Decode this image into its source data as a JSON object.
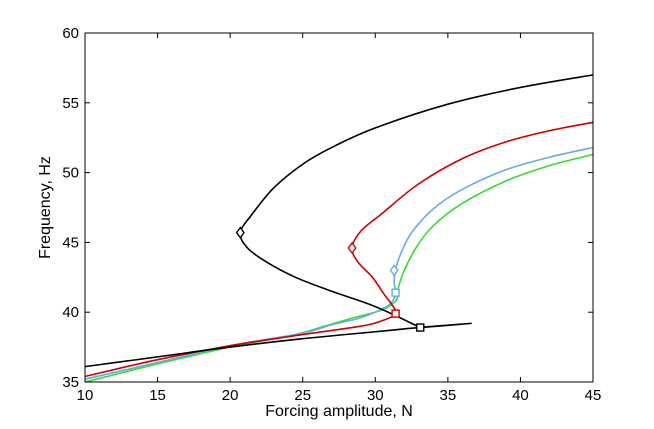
{
  "chart_data": {
    "type": "line",
    "title": "",
    "xlabel": "Forcing amplitude, N",
    "ylabel": "Frequency, Hz",
    "xlim": [
      10,
      45
    ],
    "ylim": [
      35,
      60
    ],
    "xticks": [
      10,
      15,
      20,
      25,
      30,
      35,
      40,
      45
    ],
    "yticks": [
      35,
      40,
      45,
      50,
      55,
      60
    ],
    "grid": false,
    "legend": "none",
    "series": [
      {
        "color": "#000000",
        "points": [
          [
            45,
            57.0
          ],
          [
            40,
            56.1
          ],
          [
            35,
            54.9
          ],
          [
            30,
            53.2
          ],
          [
            27,
            51.8
          ],
          [
            25,
            50.6
          ],
          [
            23,
            48.9
          ],
          [
            21.5,
            47.0
          ],
          [
            20.7,
            45.7
          ],
          [
            21.2,
            44.6
          ],
          [
            22.5,
            43.6
          ],
          [
            24.5,
            42.5
          ],
          [
            27,
            41.5
          ],
          [
            30,
            40.4
          ],
          [
            33.1,
            38.9
          ],
          [
            33.1,
            38.9
          ],
          [
            36.6,
            39.2
          ],
          [
            33,
            38.9
          ],
          [
            30,
            38.6
          ],
          [
            25,
            38.1
          ],
          [
            20,
            37.5
          ],
          [
            15,
            36.8
          ],
          [
            10,
            36.1
          ]
        ],
        "markers": [
          {
            "x": 20.7,
            "y": 45.7,
            "symbol": "diamond"
          },
          {
            "x": 33.1,
            "y": 38.9,
            "symbol": "square"
          }
        ]
      },
      {
        "color": "#cc0000",
        "points": [
          [
            45,
            53.6
          ],
          [
            42,
            53.0
          ],
          [
            39,
            52.2
          ],
          [
            36,
            51.0
          ],
          [
            33,
            49.2
          ],
          [
            30.5,
            47.1
          ],
          [
            29,
            45.8
          ],
          [
            28.4,
            44.6
          ],
          [
            28.8,
            43.6
          ],
          [
            29.8,
            42.5
          ],
          [
            30.6,
            41.3
          ],
          [
            31.1,
            40.6
          ],
          [
            31.4,
            39.9
          ],
          [
            30.5,
            39.4
          ],
          [
            29,
            39.0
          ],
          [
            25,
            38.4
          ],
          [
            20,
            37.6
          ],
          [
            15,
            36.6
          ],
          [
            10,
            35.4
          ]
        ],
        "markers": [
          {
            "x": 28.4,
            "y": 44.6,
            "symbol": "diamond"
          },
          {
            "x": 31.4,
            "y": 39.9,
            "symbol": "square"
          }
        ]
      },
      {
        "color": "#6aa9e9",
        "points": [
          [
            45,
            51.8
          ],
          [
            42,
            51.1
          ],
          [
            39,
            50.2
          ],
          [
            36,
            48.8
          ],
          [
            34,
            47.4
          ],
          [
            32.5,
            45.7
          ],
          [
            31.8,
            44.3
          ],
          [
            31.4,
            43.1
          ],
          [
            31.3,
            42.2
          ],
          [
            31.4,
            41.4
          ],
          [
            31.2,
            40.8
          ],
          [
            30.6,
            40.3
          ],
          [
            29,
            39.6
          ],
          [
            27,
            39.1
          ],
          [
            25,
            38.5
          ],
          [
            20,
            37.6
          ],
          [
            15,
            36.4
          ],
          [
            10,
            35.2
          ]
        ],
        "markers": [
          {
            "x": 31.3,
            "y": 43.0,
            "symbol": "diamond"
          },
          {
            "x": 31.4,
            "y": 41.4,
            "symbol": "square"
          }
        ]
      },
      {
        "color": "#33dd33",
        "points": [
          [
            45,
            51.3
          ],
          [
            42,
            50.5
          ],
          [
            39,
            49.4
          ],
          [
            36,
            47.8
          ],
          [
            34,
            46.2
          ],
          [
            32.8,
            44.6
          ],
          [
            32.0,
            43.0
          ],
          [
            31.6,
            41.8
          ],
          [
            31.5,
            41.0
          ],
          [
            31.2,
            40.6
          ],
          [
            30.3,
            40.1
          ],
          [
            28.5,
            39.6
          ],
          [
            26.5,
            39.0
          ],
          [
            24.5,
            38.4
          ],
          [
            20,
            37.5
          ],
          [
            15,
            36.3
          ],
          [
            10,
            35.0
          ]
        ],
        "markers": []
      }
    ]
  }
}
